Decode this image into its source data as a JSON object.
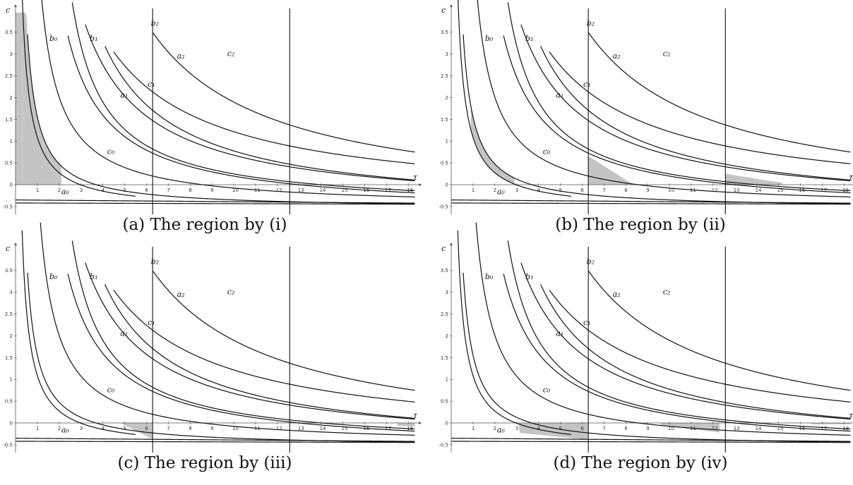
{
  "panels": [
    {
      "caption": "(a) The region by (i)",
      "shaded": "i"
    },
    {
      "caption": "(b) The region by (ii)",
      "shaded": "ii"
    },
    {
      "caption": "(c) The region by (iii)",
      "shaded": "iii"
    },
    {
      "caption": "(d) The region by (iv)",
      "shaded": "iv"
    }
  ],
  "axes": {
    "xlabel": "τ",
    "ylabel": "c",
    "x_ticks": [
      "1",
      "2",
      "3",
      "4",
      "5",
      "6",
      "7",
      "8",
      "9",
      "10",
      "11",
      "12",
      "13",
      "14",
      "15",
      "16",
      "17",
      "18"
    ],
    "y_ticks": [
      "3.5",
      "3",
      "2.5",
      "2",
      "1.5",
      "1",
      "0.5",
      "0",
      "-0.5"
    ],
    "xlim": [
      0,
      18.3
    ],
    "ylim": [
      -0.65,
      3.95
    ]
  },
  "vertical_lines_x": [
    6.283,
    12.566
  ],
  "curve_labels": {
    "a0": "a₀",
    "a1": "a₁",
    "a2": "a₂",
    "b0": "b₀",
    "b1": "b₁",
    "b2": "b₂",
    "c0": "c₀",
    "c1": "c₁",
    "c2": "c₂"
  },
  "colors": {
    "curve": "#111111",
    "shade": "#c4c4c4",
    "axis": "#555555"
  }
}
